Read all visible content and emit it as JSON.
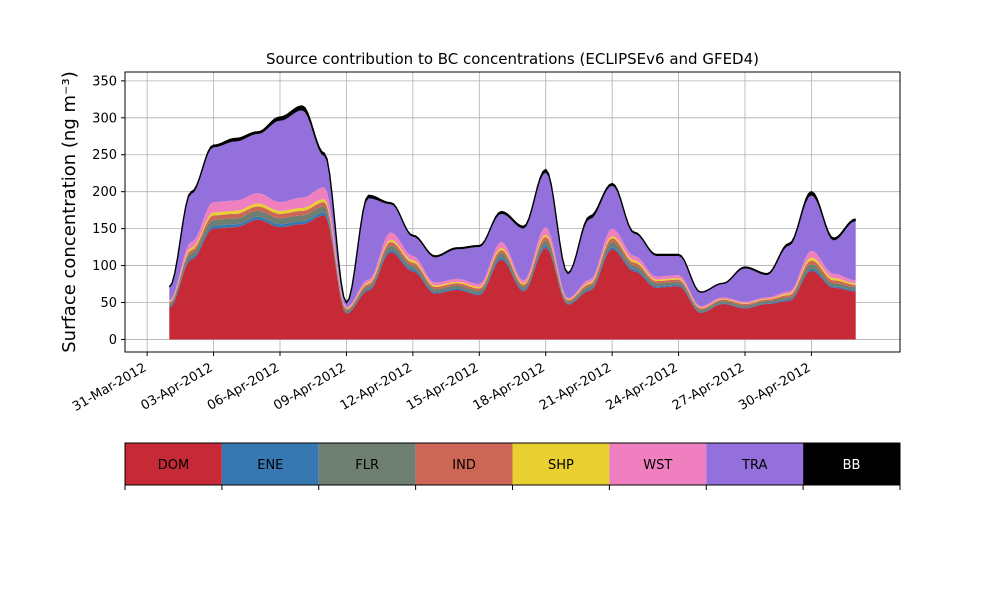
{
  "chart_data": {
    "type": "area",
    "stacked": true,
    "title": "Source contribution to BC concentrations (ECLIPSEv6 and GFED4)",
    "xlabel": "",
    "ylabel": "Surface concentration (ng m⁻³)",
    "ylim": [
      -17,
      362
    ],
    "xlim": [
      "2012-03-30",
      "2012-05-04"
    ],
    "yticks": [
      0,
      50,
      100,
      150,
      200,
      250,
      300,
      350
    ],
    "xticks": [
      "31-Mar-2012",
      "03-Apr-2012",
      "06-Apr-2012",
      "09-Apr-2012",
      "12-Apr-2012",
      "15-Apr-2012",
      "18-Apr-2012",
      "21-Apr-2012",
      "24-Apr-2012",
      "27-Apr-2012",
      "30-Apr-2012"
    ],
    "grid": true,
    "legend_position": "bottom",
    "sample_dates": [
      "2012-04-01",
      "2012-04-02",
      "2012-04-03",
      "2012-04-04",
      "2012-04-05",
      "2012-04-06",
      "2012-04-07",
      "2012-04-08",
      "2012-04-09",
      "2012-04-10",
      "2012-04-11",
      "2012-04-12",
      "2012-04-13",
      "2012-04-14",
      "2012-04-15",
      "2012-04-16",
      "2012-04-17",
      "2012-04-18",
      "2012-04-19",
      "2012-04-20",
      "2012-04-21",
      "2012-04-22",
      "2012-04-23",
      "2012-04-24",
      "2012-04-25",
      "2012-04-26",
      "2012-04-27",
      "2012-04-28",
      "2012-04-29",
      "2012-04-30",
      "2012-05-01",
      "2012-05-02"
    ],
    "series": [
      {
        "name": "DOM",
        "color": "#c52a36",
        "values": [
          43,
          108,
          150,
          152,
          162,
          152,
          156,
          168,
          35,
          66,
          118,
          92,
          62,
          67,
          60,
          108,
          65,
          124,
          47,
          66,
          122,
          92,
          70,
          72,
          36,
          48,
          42,
          48,
          52,
          93,
          70,
          65
        ]
      },
      {
        "name": "ENE",
        "color": "#3778b2",
        "values": [
          2,
          3,
          4,
          4,
          4,
          4,
          4,
          4,
          1,
          2,
          3,
          3,
          2,
          2,
          2,
          3,
          2,
          3,
          1,
          2,
          3,
          3,
          2,
          2,
          1,
          1,
          1,
          1,
          2,
          3,
          2,
          2
        ]
      },
      {
        "name": "FLR",
        "color": "#6e7f71",
        "values": [
          3,
          6,
          8,
          8,
          8,
          8,
          8,
          8,
          3,
          4,
          6,
          5,
          4,
          4,
          4,
          6,
          4,
          7,
          3,
          4,
          7,
          5,
          4,
          4,
          3,
          3,
          3,
          3,
          3,
          6,
          4,
          4
        ]
      },
      {
        "name": "IND",
        "color": "#cc6655",
        "values": [
          2,
          4,
          6,
          6,
          6,
          6,
          6,
          6,
          2,
          3,
          5,
          4,
          3,
          3,
          3,
          4,
          3,
          5,
          2,
          3,
          5,
          4,
          3,
          3,
          2,
          2,
          2,
          2,
          3,
          5,
          4,
          3
        ]
      },
      {
        "name": "SHP",
        "color": "#e8d030",
        "values": [
          1,
          3,
          4,
          4,
          4,
          4,
          4,
          4,
          1,
          2,
          3,
          3,
          2,
          2,
          2,
          3,
          2,
          3,
          1,
          2,
          3,
          3,
          2,
          2,
          1,
          1,
          1,
          1,
          2,
          4,
          3,
          2
        ]
      },
      {
        "name": "WST",
        "color": "#f07fc0",
        "values": [
          2,
          8,
          14,
          14,
          14,
          12,
          14,
          16,
          2,
          4,
          10,
          6,
          4,
          4,
          4,
          8,
          4,
          10,
          2,
          4,
          10,
          6,
          4,
          4,
          2,
          2,
          2,
          2,
          3,
          9,
          6,
          4
        ]
      },
      {
        "name": "TRA",
        "color": "#9370db",
        "values": [
          18,
          65,
          74,
          80,
          80,
          110,
          118,
          42,
          6,
          110,
          38,
          26,
          34,
          40,
          50,
          38,
          70,
          74,
          32,
          82,
          58,
          30,
          28,
          26,
          18,
          18,
          45,
          30,
          62,
          75,
          45,
          80
        ]
      },
      {
        "name": "BB",
        "color": "#000000",
        "values": [
          0,
          3,
          3,
          4,
          3,
          5,
          6,
          4,
          0,
          4,
          2,
          2,
          2,
          2,
          2,
          3,
          3,
          4,
          2,
          4,
          3,
          2,
          2,
          2,
          1,
          1,
          2,
          2,
          3,
          5,
          3,
          3
        ]
      }
    ]
  }
}
